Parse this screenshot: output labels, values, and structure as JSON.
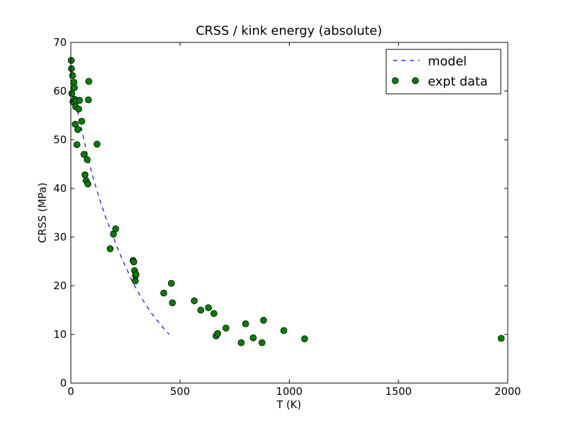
{
  "chart_data": {
    "type": "scatter",
    "title": "CRSS / kink energy (absolute)",
    "xlabel": "T (K)",
    "ylabel": "CRSS (MPa)",
    "xlim": [
      0,
      2000
    ],
    "ylim": [
      0,
      70
    ],
    "xticks": [
      0,
      500,
      1000,
      1500,
      2000
    ],
    "yticks": [
      0,
      10,
      20,
      30,
      40,
      50,
      60,
      70
    ],
    "grid": false,
    "legend": "top-right",
    "series": [
      {
        "name": "model",
        "style": "dashed-line",
        "color": "#0000ff",
        "x": [
          30,
          40,
          60,
          80,
          100,
          130,
          160,
          190,
          220,
          250,
          280,
          310,
          340,
          370,
          400,
          430,
          450
        ],
        "y": [
          56,
          54,
          50,
          46,
          42.5,
          38,
          34,
          30.5,
          27,
          24,
          21,
          18.5,
          16.3,
          14.3,
          12.6,
          11,
          10
        ]
      },
      {
        "name": "expt data",
        "style": "markers",
        "color": "#008000",
        "x": [
          2,
          3,
          4,
          8,
          10,
          14,
          16,
          18,
          20,
          22,
          24,
          28,
          32,
          36,
          40,
          50,
          60,
          65,
          70,
          75,
          78,
          80,
          82,
          120,
          180,
          195,
          205,
          285,
          288,
          292,
          295,
          296,
          298,
          425,
          460,
          465,
          565,
          595,
          630,
          655,
          665,
          672,
          710,
          780,
          800,
          835,
          875,
          882,
          975,
          1070,
          1970
        ],
        "y": [
          66.3,
          64.6,
          59.5,
          63.2,
          57.8,
          61.8,
          60.7,
          58.3,
          53.2,
          56.8,
          58,
          49,
          52.1,
          56.3,
          58.1,
          53.8,
          47,
          42.8,
          41.6,
          45.9,
          40.9,
          58.2,
          62,
          49.1,
          27.6,
          30.6,
          31.7,
          25.2,
          24.9,
          23.1,
          21,
          22.1,
          22.3,
          18.5,
          20.5,
          16.5,
          16.9,
          15,
          15.5,
          14.3,
          9.7,
          10.2,
          11.3,
          8.3,
          12.2,
          9.3,
          8.3,
          12.9,
          10.8,
          9.1,
          9.2
        ]
      }
    ]
  }
}
